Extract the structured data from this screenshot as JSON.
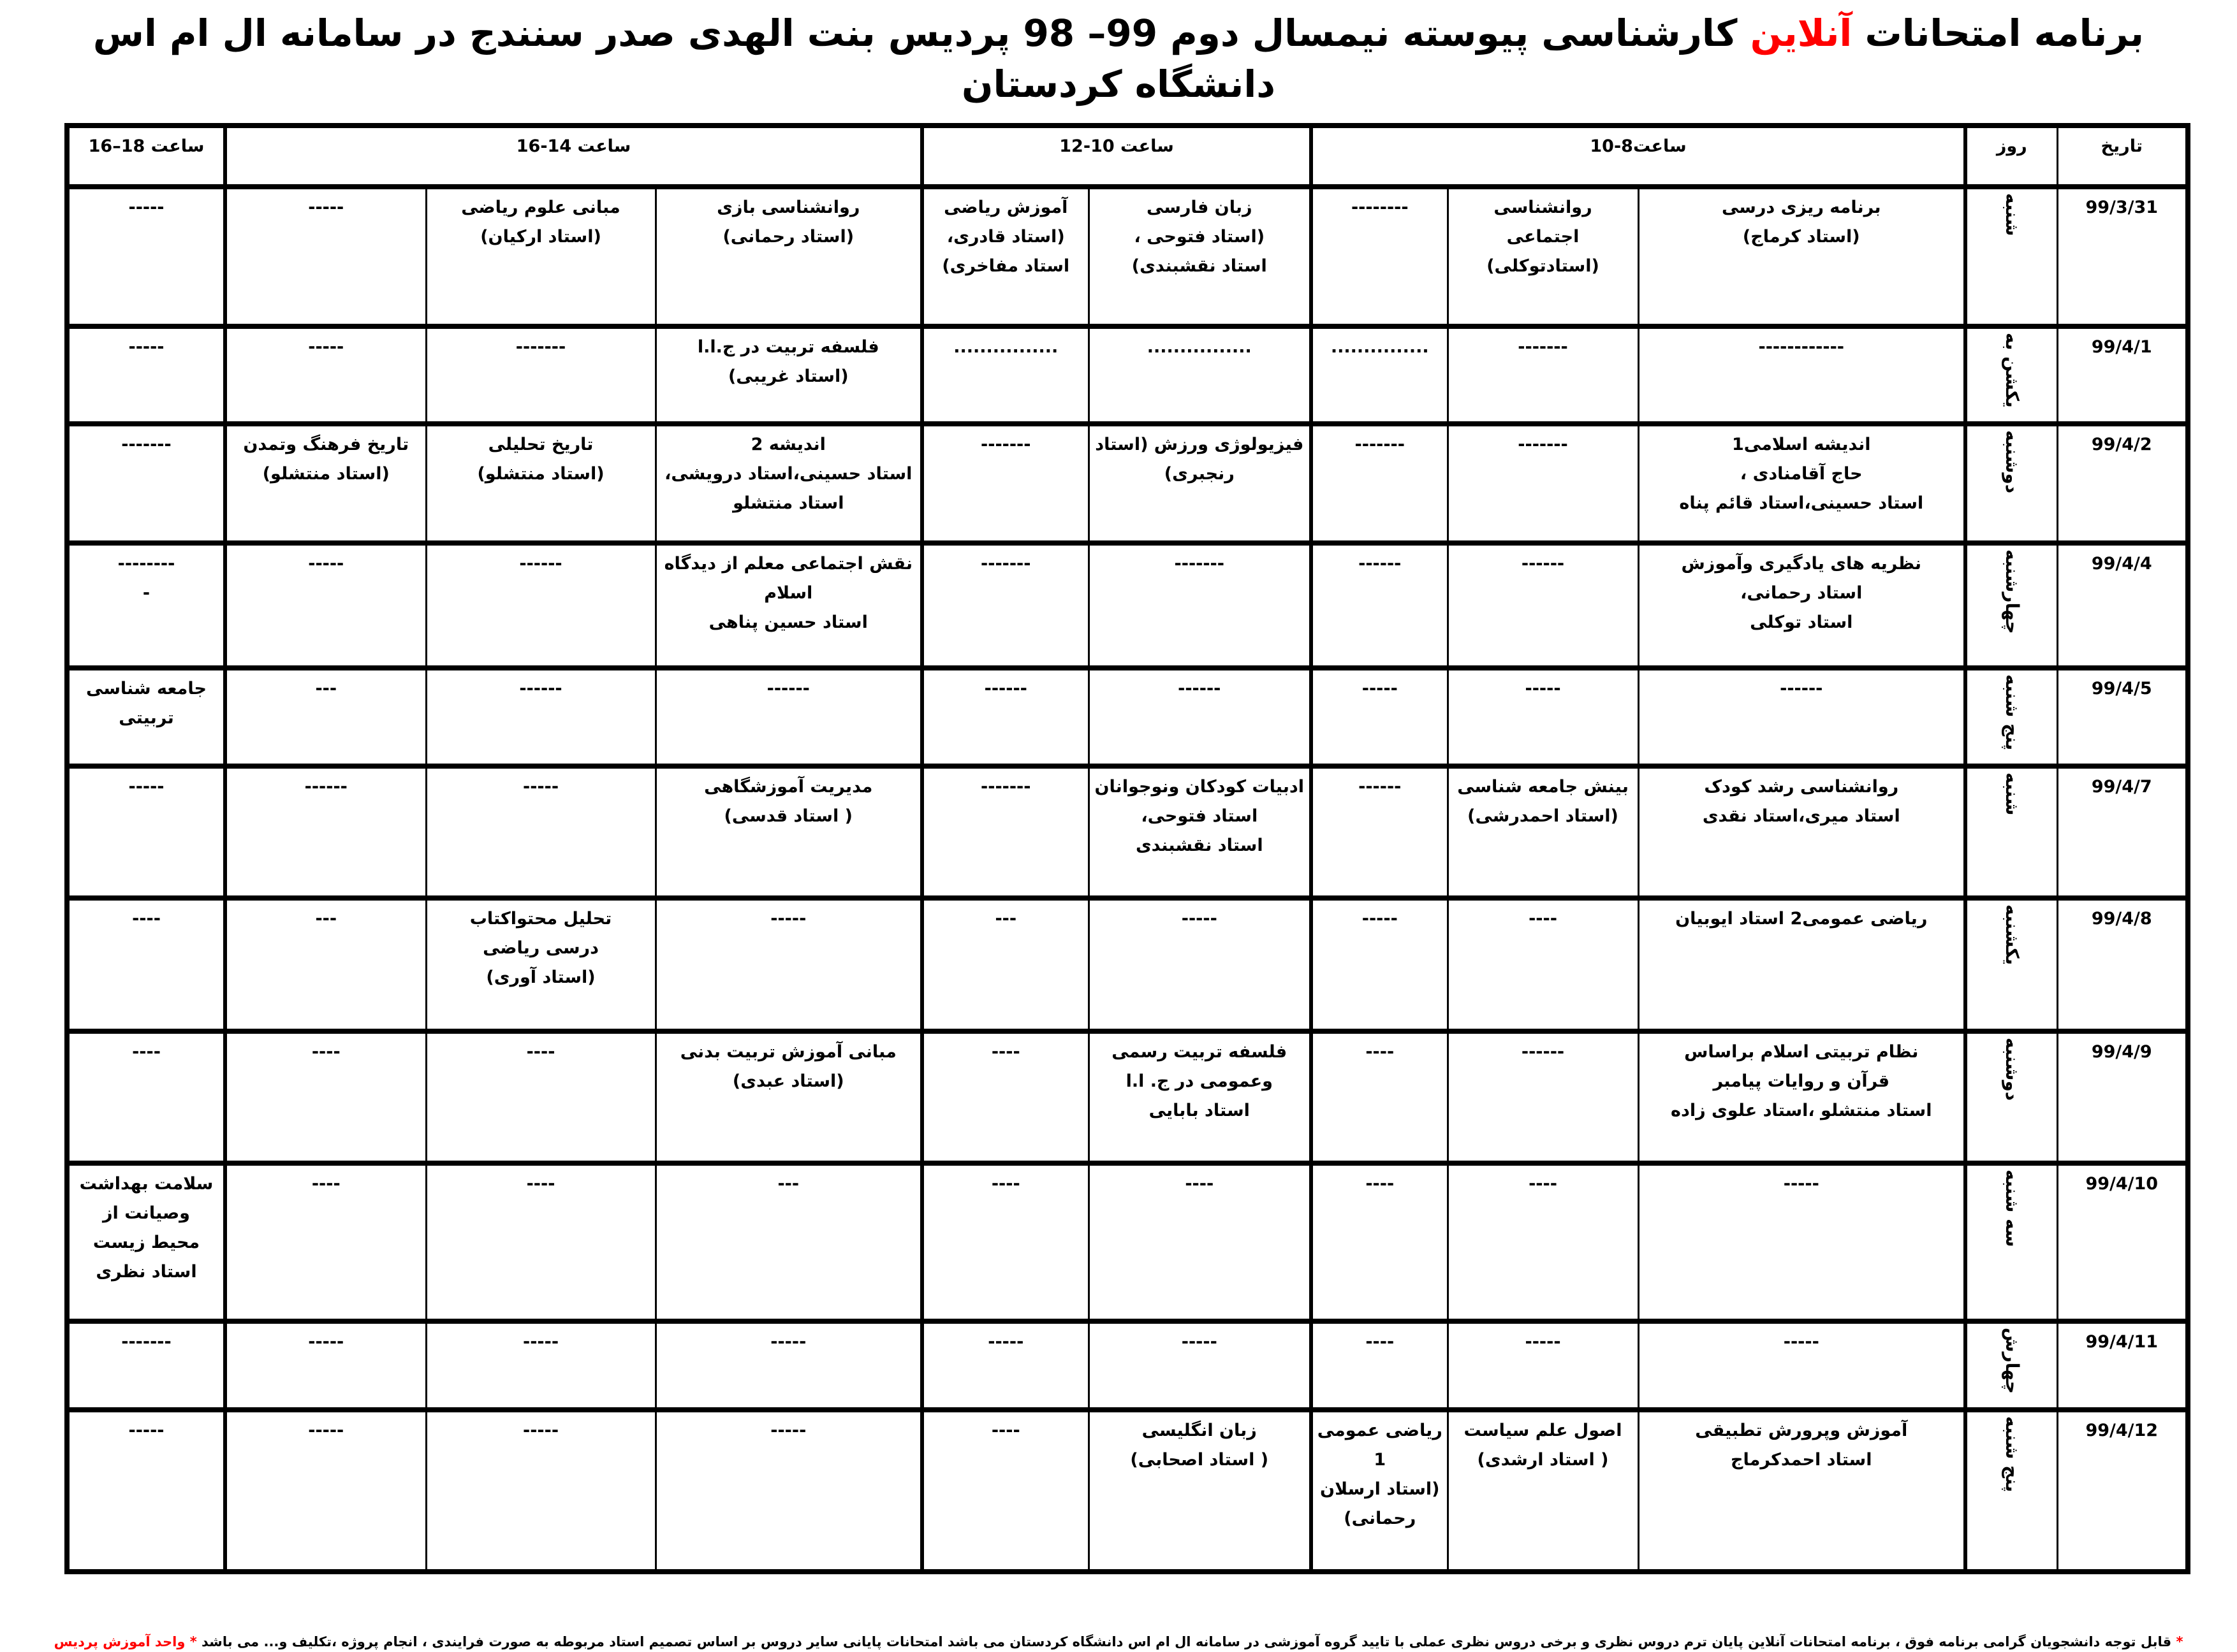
{
  "title": {
    "before": "برنامه امتحانات ",
    "highlight": "آنلاین",
    "after": " کارشناسی پیوسته نیمسال دوم 99– 98  پردیس بنت الهدی صدر سنندج در سامانه ال ام اس دانشگاه کردستان"
  },
  "colors": {
    "highlight": "#ff0000",
    "border": "#000000"
  },
  "header": {
    "date": "تاریخ",
    "day": "روز",
    "slot1": "ساعت8-10",
    "slot2": "ساعت 10-12",
    "slot3": "ساعت 14-16",
    "slot4": "ساعت 18–16"
  },
  "rows": [
    {
      "date": "99/3/31",
      "day": "شنبه",
      "cells": [
        "برنامه ریزی درسی\n(استاد کرماج)",
        "روانشناسی\nاجتماعی\n(استادتوکلی)",
        "--------",
        "زبان فارسی\n(استاد فتوحی ،\nاستاد نقشبندی)",
        "آموزش ریاضی\n(استاد قادری،\nاستاد مفاخری)",
        "روانشناسی بازی\n(استاد رحمانی)",
        "مبانی علوم ریاضی\n(استاد ارکیان)",
        "-----",
        "-----"
      ]
    },
    {
      "date": "99/4/1",
      "day": "یکشن به",
      "cells": [
        "------------",
        "-------",
        "...............",
        "................",
        "................",
        "فلسفه تربیت در ج.ا.ا\n(استاد غریبی)",
        "-------",
        "-----",
        "-----"
      ]
    },
    {
      "date": "99/4/2",
      "day": "دوشنبه",
      "cells": [
        "اندیشه اسلامی1\nحاج آقامنادی ،\nاستاد حسینی،استاد قائم پناه",
        "-------",
        "-------",
        "فیزیولوژی ورزش (استاد\nرنجبری)",
        "-------",
        "اندیشه 2\nاستاد حسینی،استاد درویشی،\nاستاد منتشلو",
        "تاریخ تحلیلی\n(استاد منتشلو)",
        "تاریخ فرهنگ وتمدن\n(استاد منتشلو)",
        "-------"
      ]
    },
    {
      "date": "99/4/4",
      "day": "چهارشنبه",
      "cells": [
        "نظریه های یادگیری وآموزش\nاستاد رحمانی،\nاستاد توکلی",
        "------",
        "------",
        "-------",
        "-------",
        "نقش اجتماعی معلم از دیدگاه\nاسلام\nاستاد حسین پناهی",
        "------",
        "-----",
        "--------\n-"
      ]
    },
    {
      "date": "99/4/5",
      "day": "پنج شنبه",
      "cells": [
        "------",
        "-----",
        "-----",
        "------",
        "------",
        "------",
        "------",
        "---",
        "جامعه شناسی\nتربیتی"
      ]
    },
    {
      "date": "99/4/7",
      "day": "شنبه",
      "cells": [
        "روانشناسی رشد کودک\nاستاد میری،استاد نقدی",
        "بینش جامعه شناسی\n(استاد احمدرشی)",
        "------",
        "ادبیات کودکان ونوجوانان\nاستاد فتوحی،\nاستاد نقشبندی",
        "-------",
        "مدیریت آموزشگاهی\n( استاد قدسی)",
        "-----",
        "------",
        "-----"
      ]
    },
    {
      "date": "99/4/8",
      "day": "یکشنبه",
      "cells": [
        "ریاضی عمومی2 استاد ایوبیان",
        "----",
        "-----",
        "-----",
        "---",
        "-----",
        "تحلیل محتواکتاب\nدرسی ریاضی\n(استاد آوری)",
        "---",
        "----"
      ]
    },
    {
      "date": "99/4/9",
      "day": "دوشنبه",
      "cells": [
        "نظام تربیتی اسلام براساس\nقرآن و روایات پیامبر\nاستاد منتشلو ،استاد علوی زاده",
        "------",
        "----",
        "فلسفه تربیت رسمی\nوعمومی در ج. ا.ا\nاستاد بابایی",
        "----",
        "مبانی آموزش تربیت بدنی\n(استاد عبدی)",
        "----",
        "----",
        "----"
      ]
    },
    {
      "date": "99/4/10",
      "day": "سه شنبه",
      "cells": [
        "-----",
        "----",
        "----",
        "----",
        "----",
        "---",
        "----",
        "----",
        "سلامت بهداشت\nوصیانت از\nمحیط زیست\nاستاد نظری"
      ]
    },
    {
      "date": "99/4/11",
      "day": "چهارش",
      "cells": [
        "-----",
        "-----",
        "----",
        "-----",
        "-----",
        "-----",
        "-----",
        "-----",
        "-------"
      ]
    },
    {
      "date": "99/4/12",
      "day": "پنج شنبه",
      "cells": [
        "آموزش وپرورش تطبیقی\nاستاد احمدکرماج",
        "اصول علم سیاست\n( استاد ارشدی)",
        "ریاضی عمومی\n1\n(استاد ارسلان\nرحمانی)",
        "زبان انگلیسی\n( استاد اصحابی)",
        "----",
        "-----",
        "-----",
        "-----",
        "-----"
      ]
    }
  ],
  "footer": {
    "star": "*",
    "text": " قابل توجه دانشجویان گرامی برنامه فوق ، برنامه امتحانات آنلاین پایان ترم  دروس نظری و برخی دروس نظری عملی  با تایید گروه آموزشی در سامانه ال ام اس دانشگاه کردستان می باشد  امتحانات پایانی سایر  دروس بر اساس تصمیم استاد مربوطه به صورت  فرایندی ، انجام پروژه ،تکلیف و... می باشد ",
    "unit": "* واحد آموزش پردیس"
  }
}
